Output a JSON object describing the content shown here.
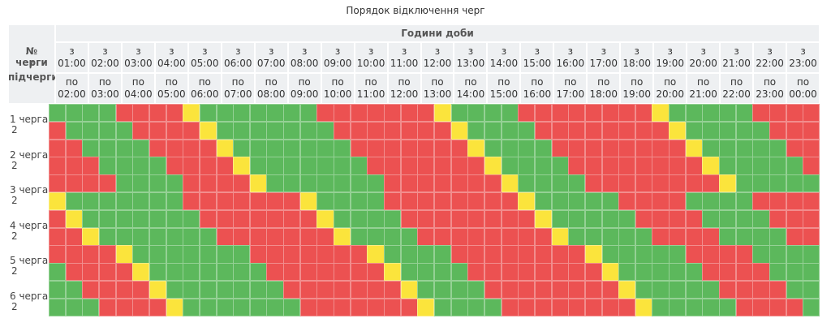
{
  "title": "Порядок відключення черг",
  "header": {
    "corner": [
      "№ черги",
      "/",
      "підчерги"
    ],
    "group": "Години доби",
    "from_prefix": "з",
    "to_prefix": "по",
    "hours": [
      "01:00",
      "02:00",
      "03:00",
      "04:00",
      "05:00",
      "06:00",
      "07:00",
      "08:00",
      "09:00",
      "10:00",
      "11:00",
      "12:00",
      "13:00",
      "14:00",
      "15:00",
      "16:00",
      "17:00",
      "18:00",
      "19:00",
      "20:00",
      "21:00",
      "22:00",
      "23:00",
      "00:00"
    ]
  },
  "queues": [
    {
      "label": "1 черга",
      "sub": "2"
    },
    {
      "label": "2 черга",
      "sub": "2"
    },
    {
      "label": "3 черга",
      "sub": "2"
    },
    {
      "label": "4 черга",
      "sub": "2"
    },
    {
      "label": "5 черга",
      "sub": "2"
    },
    {
      "label": "6 черга",
      "sub": "2"
    }
  ],
  "colors": {
    "G": "#5cb85c",
    "R": "#ec5151",
    "Y": "#fbe43c"
  },
  "cells": [
    "GGGGRRRRYGGGGGGGRRRRRRRYGGGGRRRRRRRRYGGGGGRRRR",
    "RGGGGRRRRYGGGGGGGRRRRRRRYGGGGRRRRRRRRYGGGGGRRR",
    "RRGGGGRRRRYGGGGGGGRRRRRRRYGGGGRRRRRRRRYGGGGGRR",
    "RRRGGGGRRRRYGGGGGGGRRRRRRRYGGGGRRRRRRRRYGGGGGR",
    "RRRRGGGGRRRRYGGGGGGGRRRRRRRYGGGGRRRRRRRRYGGGGG",
    "YGGGGGGGRRRRRRRYGGGGRRRRRRRRYGGGGGRRRRGGGGRRRR",
    "RYGGGGGGGRRRRRRRYGGGGRRRRRRRRYGGGGGRRRRGGGGRRR",
    "RRYGGGGGGGRRRRRRRYGGGGRRRRRRRRYGGGGGRRRRGGGGRR",
    "RRRRYGGGGGGGRRRRRRRYGGGGRRRRRRRRYGGGGGRRRRGGGG",
    "GRRRRYGGGGGGGRRRRRRRYGGGGRRRRRRRRYGGGGGRRRRGGG",
    "GGRRRRYGGGGGGGRRRRRRRYGGGGRRRRRRRRYGGGGGRRRRGG",
    "GGGRRRRYGGGGGGGRRRRRRRYGGGGRRRRRRRRYGGGGGRRRRG"
  ]
}
